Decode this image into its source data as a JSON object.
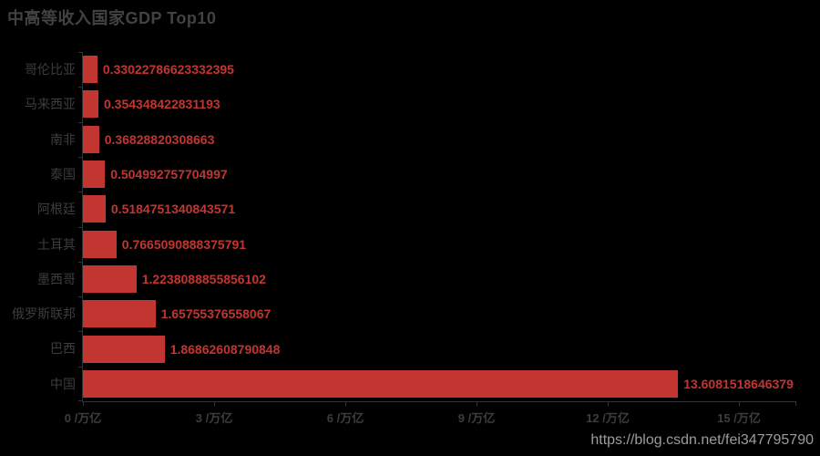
{
  "chart_data": {
    "type": "bar",
    "orientation": "horizontal",
    "title": "中高等收入国家GDP Top10",
    "categories": [
      "哥伦比亚",
      "马来西亚",
      "南非",
      "泰国",
      "阿根廷",
      "土耳其",
      "墨西哥",
      "俄罗斯联邦",
      "巴西",
      "中国"
    ],
    "values": [
      0.33022786623332395,
      0.354348422831193,
      0.36828820308663,
      0.504992757704997,
      0.5184751340843571,
      0.7665090888375791,
      1.2238088855856102,
      1.65755376558067,
      1.86862608790848,
      13.6081518646379
    ],
    "value_labels": [
      "0.33022786623332395",
      "0.354348422831193",
      "0.36828820308663",
      "0.504992757704997",
      "0.5184751340843571",
      "0.7665090888375791",
      "1.2238088855856102",
      "1.65755376558067",
      "1.86862608790848",
      "13.6081518646379"
    ],
    "xlabel": "/万亿",
    "ylabel": "",
    "x_tick_values": [
      0,
      3,
      6,
      9,
      12,
      15
    ],
    "x_tick_labels": [
      "0 /万亿",
      "3 /万亿",
      "6 /万亿",
      "9 /万亿",
      "12 /万亿",
      "15 /万亿"
    ],
    "xlim": [
      0,
      16.31
    ],
    "grid": false,
    "legend": false,
    "colors": {
      "background": "#000000",
      "bar": "#c23531",
      "value_label": "#c23531",
      "axis_line": "#333333",
      "axis_label": "#3d3d3d",
      "title": "#424242"
    }
  },
  "watermark": {
    "text": "https://blog.csdn.net/fei347795790"
  }
}
